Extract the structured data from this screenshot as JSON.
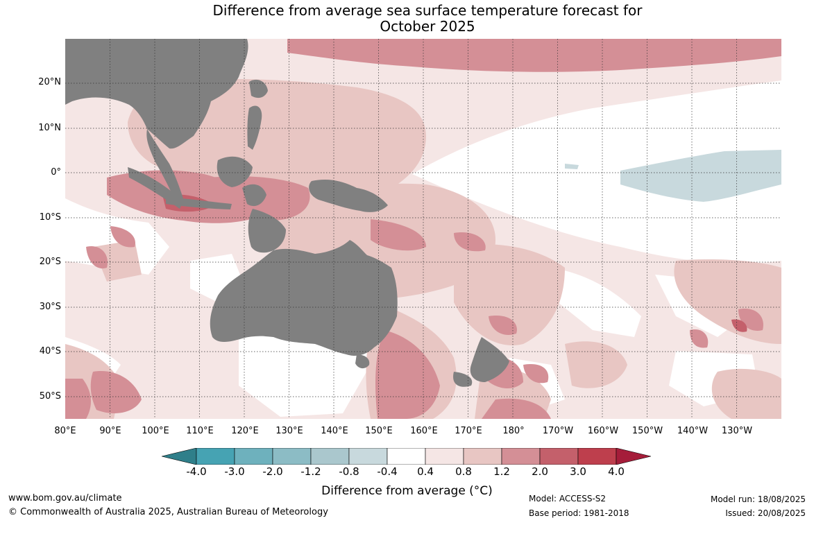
{
  "title_line1": "Difference from average sea surface temperature forecast for",
  "title_line2": "October 2025",
  "lat_labels": [
    "20°N",
    "10°N",
    "0°",
    "10°S",
    "20°S",
    "30°S",
    "40°S",
    "50°S"
  ],
  "lon_labels": [
    "80°E",
    "90°E",
    "100°E",
    "110°E",
    "120°E",
    "130°E",
    "140°E",
    "150°E",
    "160°E",
    "170°E",
    "180°",
    "170°W",
    "160°W",
    "150°W",
    "140°W",
    "130°W"
  ],
  "colorbar": {
    "ticks": [
      "-4.0",
      "-3.0",
      "-2.0",
      "-1.2",
      "-0.8",
      "-0.4",
      "0.4",
      "0.8",
      "1.2",
      "2.0",
      "3.0",
      "4.0"
    ],
    "colors": [
      "#2f7f8a",
      "#46a3b3",
      "#6eb1bd",
      "#8cbcc5",
      "#aac7cd",
      "#c8d9dd",
      "#ffffff",
      "#f5e6e5",
      "#e8c6c3",
      "#d48f96",
      "#c4606b",
      "#be3f4d",
      "#a51d3a"
    ],
    "label": "Difference from average (°C)"
  },
  "footer": {
    "url": "www.bom.gov.au/climate",
    "copyright": "© Commonwealth of Australia 2025, Australian Bureau of Meteorology",
    "model": "Model: ACCESS-S2",
    "base_period": "Base period: 1981-2018",
    "model_run": "Model run: 18/08/2025",
    "issued": "Issued: 20/08/2025"
  },
  "map": {
    "extent": {
      "lon_min": 80,
      "lon_max": 240,
      "lat_min": -55,
      "lat_max": 30
    },
    "land_color": "#808080",
    "gridlines": true
  }
}
